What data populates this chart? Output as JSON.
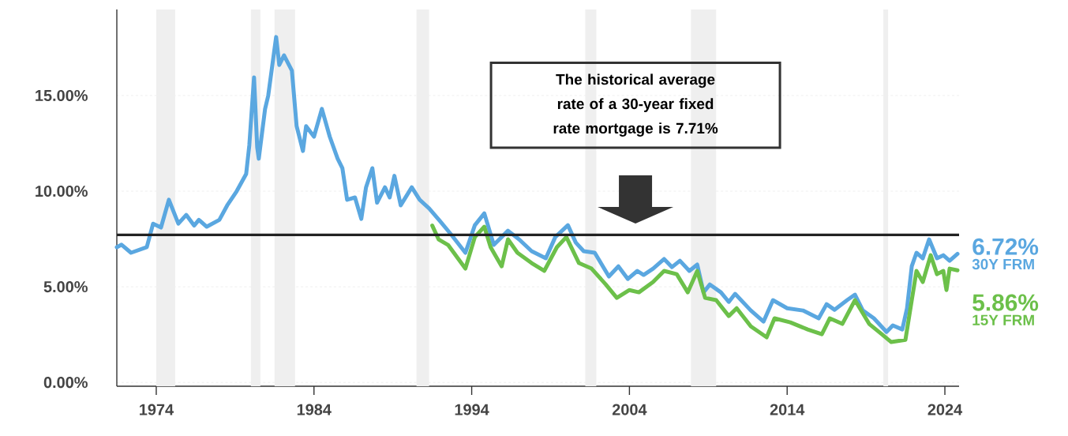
{
  "chart_data": {
    "type": "line",
    "xlim": [
      1971.5,
      2024.9
    ],
    "ylim": [
      -0.2,
      19.5
    ],
    "xticks": [
      1974,
      1984,
      1994,
      2004,
      2014,
      2024
    ],
    "yticks": [
      {
        "value": 0,
        "label": "0.00%"
      },
      {
        "value": 5,
        "label": "5.00%"
      },
      {
        "value": 10,
        "label": "10.00%"
      },
      {
        "value": 15,
        "label": "15.00%"
      }
    ],
    "grid": "y",
    "line_style": "solid",
    "series": [
      {
        "name": "30Y FRM",
        "color": "#5aa7e0",
        "x": [
          1971.5,
          1971.8,
          1972.4,
          1973.4,
          1973.8,
          1974.3,
          1974.8,
          1975.4,
          1975.9,
          1976.4,
          1976.7,
          1977.2,
          1978.0,
          1978.5,
          1979.1,
          1979.7,
          1979.9,
          1980.2,
          1980.4,
          1980.5,
          1980.9,
          1981.1,
          1981.6,
          1981.8,
          1982.1,
          1982.6,
          1982.9,
          1983.3,
          1983.5,
          1984.0,
          1984.5,
          1985.0,
          1985.5,
          1985.8,
          1986.1,
          1986.6,
          1987.0,
          1987.3,
          1987.7,
          1988.0,
          1988.5,
          1988.8,
          1989.1,
          1989.5,
          1990.2,
          1990.7,
          1991.3,
          1992.0,
          1992.7,
          1993.6,
          1994.2,
          1994.8,
          1995.4,
          1996.3,
          1997.0,
          1997.8,
          1998.7,
          1999.3,
          2000.1,
          2000.6,
          2001.1,
          2001.8,
          2002.7,
          2003.3,
          2003.9,
          2004.5,
          2004.9,
          2005.5,
          2006.2,
          2006.7,
          2007.2,
          2007.8,
          2008.3,
          2008.7,
          2009.1,
          2009.8,
          2010.3,
          2010.7,
          2011.7,
          2012.5,
          2013.1,
          2014.0,
          2015.0,
          2016.0,
          2016.5,
          2017.0,
          2017.8,
          2018.3,
          2018.8,
          2019.5,
          2020.3,
          2020.7,
          2021.3,
          2021.6,
          2021.9,
          2022.2,
          2022.6,
          2023.0,
          2023.5,
          2023.9,
          2024.3,
          2024.8
        ],
        "values": [
          7.07,
          7.2,
          6.78,
          7.07,
          8.3,
          8.1,
          9.55,
          8.3,
          8.76,
          8.2,
          8.5,
          8.14,
          8.5,
          9.26,
          10.0,
          10.9,
          12.4,
          15.95,
          12.3,
          11.7,
          14.3,
          15.0,
          18.06,
          16.6,
          17.1,
          16.3,
          13.4,
          12.1,
          13.4,
          12.85,
          14.3,
          12.85,
          11.7,
          11.2,
          9.55,
          9.67,
          8.55,
          10.2,
          11.2,
          9.4,
          10.2,
          9.67,
          10.8,
          9.26,
          10.2,
          9.55,
          9.1,
          8.43,
          7.73,
          6.78,
          8.22,
          8.84,
          7.19,
          7.93,
          7.48,
          6.86,
          6.49,
          7.6,
          8.22,
          7.31,
          6.86,
          6.78,
          5.54,
          6.07,
          5.41,
          5.83,
          5.62,
          5.95,
          6.45,
          6.03,
          6.36,
          5.83,
          6.16,
          4.71,
          5.12,
          4.71,
          4.21,
          4.63,
          3.76,
          3.18,
          4.3,
          3.88,
          3.76,
          3.35,
          4.09,
          3.8,
          4.3,
          4.59,
          3.76,
          3.35,
          2.64,
          2.98,
          2.77,
          3.88,
          6.07,
          6.78,
          6.49,
          7.48,
          6.49,
          6.65,
          6.36,
          6.72
        ]
      },
      {
        "name": "15Y FRM",
        "color": "#6cc04a",
        "x": [
          1991.5,
          1991.9,
          1992.5,
          1993.6,
          1994.2,
          1994.8,
          1995.2,
          1995.9,
          1996.3,
          1996.9,
          1997.8,
          1998.6,
          1999.4,
          2000.0,
          2000.8,
          2001.6,
          2002.5,
          2003.2,
          2004.0,
          2004.6,
          2005.5,
          2006.2,
          2007.0,
          2007.7,
          2008.3,
          2008.8,
          2009.5,
          2010.3,
          2010.8,
          2011.7,
          2012.7,
          2013.2,
          2014.2,
          2015.3,
          2016.2,
          2016.7,
          2017.5,
          2018.3,
          2019.2,
          2020.0,
          2020.6,
          2021.5,
          2021.9,
          2022.2,
          2022.6,
          2023.1,
          2023.5,
          2023.9,
          2024.1,
          2024.3,
          2024.8
        ],
        "values": [
          8.2,
          7.48,
          7.19,
          5.95,
          7.6,
          8.14,
          7.07,
          6.07,
          7.48,
          6.78,
          6.24,
          5.83,
          7.07,
          7.6,
          6.24,
          5.95,
          5.12,
          4.42,
          4.83,
          4.71,
          5.25,
          5.83,
          5.66,
          4.71,
          5.83,
          4.42,
          4.3,
          3.47,
          3.88,
          2.93,
          2.36,
          3.35,
          3.14,
          2.77,
          2.52,
          3.35,
          3.06,
          4.3,
          3.06,
          2.52,
          2.11,
          2.23,
          4.3,
          5.83,
          5.25,
          6.65,
          5.66,
          5.83,
          4.83,
          5.95,
          5.86
        ]
      }
    ],
    "ref_lines": [
      {
        "axis": "y",
        "value": 7.71,
        "color": "#222222",
        "line_style": "solid"
      }
    ],
    "bands": [
      {
        "axis": "x",
        "from": 1974.0,
        "to": 1975.2,
        "color": "#efefef"
      },
      {
        "axis": "x",
        "from": 1980.0,
        "to": 1980.6,
        "color": "#efefef"
      },
      {
        "axis": "x",
        "from": 1981.5,
        "to": 1982.8,
        "color": "#efefef"
      },
      {
        "axis": "x",
        "from": 1990.5,
        "to": 1991.3,
        "color": "#efefef"
      },
      {
        "axis": "x",
        "from": 2001.2,
        "to": 2001.9,
        "color": "#efefef"
      },
      {
        "axis": "x",
        "from": 2007.9,
        "to": 2009.5,
        "color": "#efefef"
      },
      {
        "axis": "x",
        "from": 2020.1,
        "to": 2020.4,
        "color": "#efefef"
      }
    ],
    "annotations": [
      "The historical average rate of a 30-year fixed rate mortgage is 7.71%",
      {
        "text": "6.72%",
        "x": 2024.8,
        "y": 6.72
      },
      {
        "text": "5.86%",
        "x": 2024.8,
        "y": 5.86
      }
    ]
  }
}
